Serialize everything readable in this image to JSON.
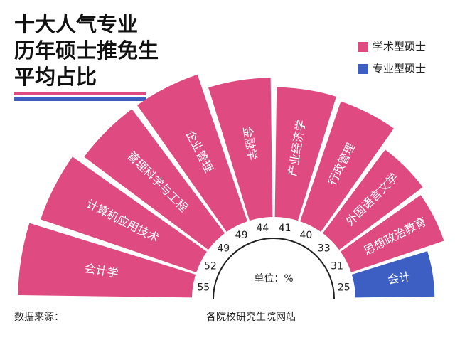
{
  "chart_data": {
    "type": "radial_bar",
    "title": [
      "十大人气专业",
      "历年硕士推免生",
      "平均占比"
    ],
    "unit_label": "单位：%",
    "source_label": "数据来源：",
    "source": "各院校研究生院网站",
    "categories": [
      "会计学",
      "计算机应用技术",
      "管理科学与工程",
      "企业管理",
      "金融学",
      "产业经济学",
      "行政管理",
      "外国语言文学",
      "思想政治教育",
      "会计"
    ],
    "series": [
      {
        "name": "学术型硕士",
        "color": "#df4a80",
        "values": [
          55,
          52,
          49,
          49,
          44,
          41,
          40,
          33,
          31,
          null
        ]
      },
      {
        "name": "专业型硕士",
        "color": "#3d5fc4",
        "values": [
          null,
          null,
          null,
          null,
          null,
          null,
          null,
          null,
          null,
          25
        ]
      }
    ],
    "ylim": [
      0,
      60
    ]
  }
}
